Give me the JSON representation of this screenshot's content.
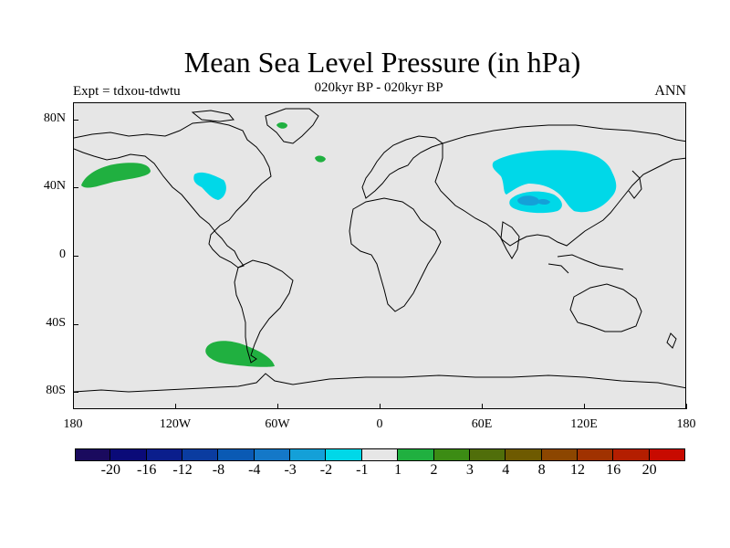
{
  "title": "Mean Sea Level Pressure (in hPa)",
  "subtitle": "020kyr BP - 020kyr BP",
  "experiment": "Expt = tdxou-tdwtu",
  "season": "ANN",
  "map": {
    "background_color": "#e6e6e6",
    "lon_range": [
      -180,
      180
    ],
    "lat_range": [
      -90,
      90
    ],
    "x_ticks": [
      {
        "label": "180",
        "lon": -180
      },
      {
        "label": "120W",
        "lon": -120
      },
      {
        "label": "60W",
        "lon": -60
      },
      {
        "label": "0",
        "lon": 0
      },
      {
        "label": "60E",
        "lon": 60
      },
      {
        "label": "120E",
        "lon": 120
      },
      {
        "label": "180",
        "lon": 180
      }
    ],
    "y_ticks": [
      {
        "label": "80N",
        "lat": 80
      },
      {
        "label": "40N",
        "lat": 40
      },
      {
        "label": "0",
        "lat": 0
      },
      {
        "label": "40S",
        "lat": -40
      },
      {
        "label": "80S",
        "lat": -80
      }
    ],
    "anomaly_regions": [
      {
        "name": "north-pacific-positive",
        "color": "#20b040",
        "level": "1 to 2"
      },
      {
        "name": "south-pacific-positive",
        "color": "#20b040",
        "level": "1 to 2"
      },
      {
        "name": "greenland-positive",
        "color": "#20b040",
        "level": "1 to 2"
      },
      {
        "name": "north-atlantic-positive",
        "color": "#20b040",
        "level": "1 to 2"
      },
      {
        "name": "north-america-negative",
        "color": "#00d8e8",
        "level": "-2 to -1"
      },
      {
        "name": "asia-negative",
        "color": "#00d8e8",
        "level": "-2 to -1"
      },
      {
        "name": "tibet-negative",
        "color": "#14a0d8",
        "level": "-3 to -2"
      }
    ]
  },
  "colorbar": {
    "colors": [
      "#1a0a5e",
      "#0a0a78",
      "#0a1e8c",
      "#0a3ca0",
      "#0a5ab4",
      "#1478c8",
      "#14a0d8",
      "#00d8e8",
      "#e6e6e6",
      "#20b040",
      "#3c8c14",
      "#506e0a",
      "#6e5a00",
      "#8c4600",
      "#a03200",
      "#b41e00",
      "#c80a00"
    ],
    "labels": [
      "-20",
      "-16",
      "-12",
      "-8",
      "-4",
      "-3",
      "-2",
      "-1",
      "1",
      "2",
      "3",
      "4",
      "8",
      "12",
      "16",
      "20"
    ]
  }
}
